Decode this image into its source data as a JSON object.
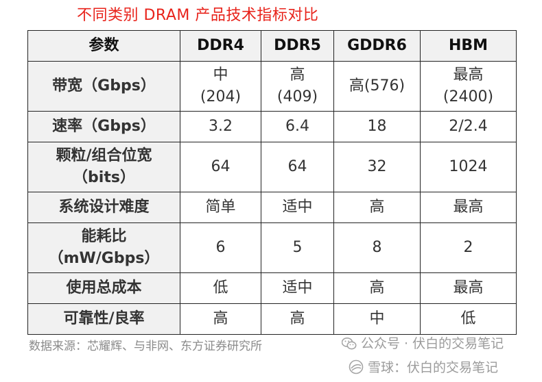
{
  "title": "不同类别 DRAM 产品技术指标对比",
  "table": {
    "headers": [
      "参数",
      "DDR4",
      "DDR5",
      "GDDR6",
      "HBM"
    ],
    "rows": [
      {
        "label": [
          "带宽（Gbps）"
        ],
        "cells": [
          [
            "中",
            "(204)"
          ],
          [
            "高",
            "(409)"
          ],
          [
            "高(576)"
          ],
          [
            "最高",
            "(2400)"
          ]
        ]
      },
      {
        "label": [
          "速率（Gbps）"
        ],
        "cells": [
          [
            "3.2"
          ],
          [
            "6.4"
          ],
          [
            "18"
          ],
          [
            "2/2.4"
          ]
        ]
      },
      {
        "label": [
          "颗粒/组合位宽",
          "（bits）"
        ],
        "cells": [
          [
            "64"
          ],
          [
            "64"
          ],
          [
            "32"
          ],
          [
            "1024"
          ]
        ]
      },
      {
        "label": [
          "系统设计难度"
        ],
        "cells": [
          [
            "简单"
          ],
          [
            "适中"
          ],
          [
            "高"
          ],
          [
            "最高"
          ]
        ]
      },
      {
        "label": [
          "能耗比",
          "（mW/Gbps）"
        ],
        "cells": [
          [
            "6"
          ],
          [
            "5"
          ],
          [
            "8"
          ],
          [
            "2"
          ]
        ]
      },
      {
        "label": [
          "使用总成本"
        ],
        "cells": [
          [
            "低"
          ],
          [
            "适中"
          ],
          [
            "高"
          ],
          [
            "最高"
          ]
        ]
      },
      {
        "label": [
          "可靠性/良率"
        ],
        "cells": [
          [
            "高"
          ],
          [
            "高"
          ],
          [
            "中"
          ],
          [
            "低"
          ]
        ]
      }
    ]
  },
  "source": "数据来源：芯耀辉、与非网、东方证券研究所",
  "watermarks": {
    "wechat": "公众号 · 伏白的交易笔记",
    "xueqiu": "雪球：伏白的交易笔记"
  },
  "colors": {
    "title": "#e8231b",
    "header_bg": "#f1f1f1",
    "watermark": "#9b9b9b"
  }
}
